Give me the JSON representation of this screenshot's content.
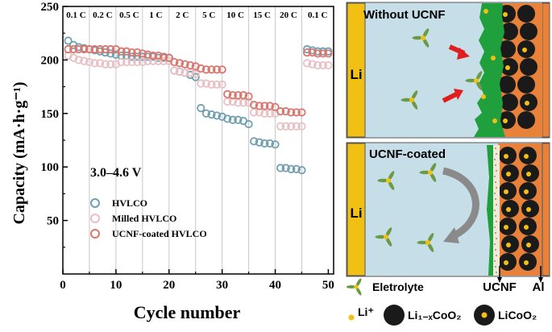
{
  "chart_data": {
    "type": "scatter",
    "title": "",
    "xlabel": "Cycle number",
    "ylabel": "Capacity (mA·h·g⁻¹)",
    "xlim": [
      0,
      51
    ],
    "ylim": [
      0,
      250
    ],
    "xticks": [
      0,
      10,
      20,
      30,
      40,
      50
    ],
    "yticks": [
      50,
      100,
      150,
      200,
      250
    ],
    "voltage_label": "3.0–4.6 V",
    "rate_labels": [
      "0.1 C",
      "0.2 C",
      "0.5 C",
      "1 C",
      "2 C",
      "5 C",
      "10 C",
      "15 C",
      "20 C",
      "0.1 C"
    ],
    "rate_boundaries": [
      5,
      10,
      15,
      20,
      25,
      30,
      35,
      40,
      45
    ],
    "x": [
      1,
      2,
      3,
      4,
      5,
      6,
      7,
      8,
      9,
      10,
      11,
      12,
      13,
      14,
      15,
      16,
      17,
      18,
      19,
      20,
      21,
      22,
      23,
      24,
      25,
      26,
      27,
      28,
      29,
      30,
      31,
      32,
      33,
      34,
      35,
      36,
      37,
      38,
      39,
      40,
      41,
      42,
      43,
      44,
      45,
      46,
      47,
      48,
      49,
      50
    ],
    "series": [
      {
        "name": "HVLCO",
        "color": "#6f9fb0",
        "values": [
          218,
          214,
          212,
          211,
          210,
          209,
          208,
          207,
          206,
          205,
          204,
          204,
          203,
          203,
          203,
          203,
          203,
          202,
          202,
          202,
          190,
          189,
          188,
          186,
          184,
          155,
          150,
          149,
          148,
          147,
          145,
          144,
          144,
          143,
          140,
          124,
          123,
          122,
          122,
          121,
          99,
          99,
          98,
          98,
          97,
          210,
          209,
          208,
          208,
          208
        ]
      },
      {
        "name": "Milled HVLCO",
        "color": "#e8c0c4",
        "values": [
          204,
          202,
          200,
          199,
          198,
          197,
          197,
          196,
          196,
          196,
          198,
          198,
          198,
          198,
          198,
          199,
          199,
          199,
          199,
          199,
          190,
          189,
          188,
          188,
          187,
          178,
          178,
          177,
          177,
          177,
          161,
          161,
          160,
          160,
          160,
          151,
          151,
          150,
          150,
          150,
          138,
          138,
          138,
          138,
          138,
          197,
          196,
          195,
          195,
          195
        ]
      },
      {
        "name": "UCNF-coated HVLCO",
        "color": "#d9766e",
        "values": [
          210,
          210,
          210,
          210,
          210,
          210,
          210,
          210,
          210,
          210,
          208,
          208,
          207,
          207,
          206,
          205,
          204,
          204,
          203,
          202,
          198,
          197,
          196,
          195,
          194,
          192,
          191,
          191,
          191,
          191,
          168,
          167,
          167,
          167,
          166,
          158,
          157,
          157,
          157,
          156,
          152,
          152,
          151,
          151,
          151,
          207,
          207,
          206,
          206,
          206
        ]
      }
    ]
  },
  "schematic": {
    "top_title": "Without UCNF",
    "bottom_title": "UCNF-coated",
    "li_label": "Li",
    "legend": {
      "electrolyte": "Eletrolyte",
      "li_ion": "Li⁺",
      "delithiated": "Li₁₋ₓCoO₂",
      "licoo2": "LiCoO₂"
    },
    "ucnf_label": "UCNF",
    "al_label": "Al",
    "colors": {
      "electrolyte_bg": "#c6dee8",
      "lithium": "#f2c012",
      "ucnf_green": "#1fa03c",
      "cathode_orange": "#e8823a",
      "arrow_red": "#e01e1e",
      "particle": "#1a1a1a"
    }
  }
}
